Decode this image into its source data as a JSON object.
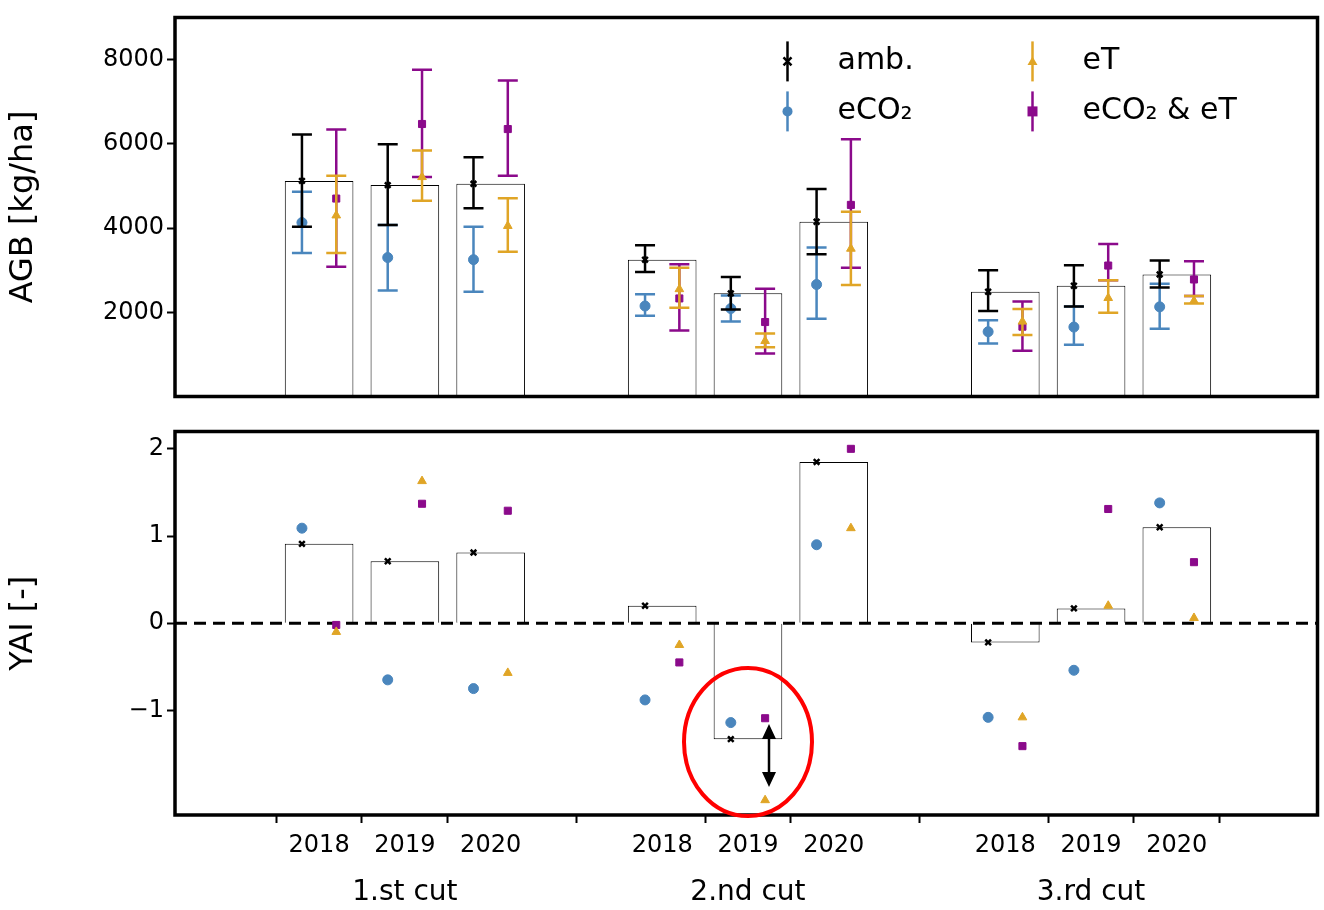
{
  "chart_data": [
    {
      "type": "bar",
      "ylabel": "AGB [kg/ha]",
      "categories": [
        "2018",
        "2019",
        "2020",
        null,
        "2018",
        "2019",
        "2020",
        null,
        "2018",
        "2019",
        "2020"
      ],
      "ylim": [
        0,
        9000
      ],
      "yticks": [
        2000,
        4000,
        6000,
        8000
      ],
      "tick_labels": "y",
      "legend": "top right",
      "series": [
        {
          "type": "bar",
          "color": "#ffffff",
          "values": [
            5120,
            5020,
            5050,
            null,
            3250,
            2450,
            4150,
            null,
            2490,
            2630,
            2900
          ]
        },
        {
          "type": "scatter",
          "name": "amb.",
          "color": "#000000",
          "marker": "cross",
          "values": [
            5120,
            5020,
            5050,
            null,
            3250,
            2450,
            4150,
            null,
            2490,
            2630,
            2900
          ],
          "errors": [
            [
              4030,
              6220
            ],
            [
              4070,
              5990
            ],
            [
              4470,
              5680
            ],
            null,
            [
              2960,
              3590
            ],
            [
              2070,
              2840
            ],
            [
              3380,
              4930
            ],
            null,
            [
              2030,
              3000
            ],
            [
              2140,
              3120
            ],
            [
              2590,
              3230
            ]
          ]
        },
        {
          "type": "scatter",
          "name": "eCO₂",
          "color": "#4a86bd",
          "marker": "circle",
          "values": [
            4130,
            3300,
            3250,
            null,
            2150,
            2090,
            2660,
            null,
            1540,
            1650,
            2130
          ],
          "errors": [
            [
              3410,
              4860
            ],
            [
              2520,
              4070
            ],
            [
              2490,
              4030
            ],
            null,
            [
              1920,
              2430
            ],
            [
              1780,
              2400
            ],
            [
              1850,
              3540
            ],
            null,
            [
              1260,
              1810
            ],
            [
              1230,
              2140
            ],
            [
              1610,
              2680
            ]
          ]
        },
        {
          "type": "scatter",
          "name": "eT",
          "color": "#e0a526",
          "marker": "triangle",
          "values": [
            4300,
            5210,
            4050,
            null,
            2550,
            1320,
            3510,
            null,
            1780,
            2340,
            2270
          ],
          "errors": [
            [
              3410,
              5240
            ],
            [
              4650,
              5840
            ],
            [
              3440,
              4710
            ],
            null,
            [
              2110,
              3060
            ],
            [
              1170,
              1500
            ],
            [
              2650,
              4390
            ],
            null,
            [
              1460,
              2080
            ],
            [
              1990,
              2760
            ],
            [
              2210,
              2390
            ]
          ]
        },
        {
          "type": "scatter",
          "name": "eCO₂ & eT",
          "color": "#8b0a8b",
          "marker": "square",
          "values": [
            4700,
            6470,
            6350,
            null,
            2330,
            1770,
            4550,
            null,
            1660,
            3110,
            2780
          ],
          "errors": [
            [
              3080,
              6340
            ],
            [
              5210,
              7760
            ],
            [
              5240,
              7500
            ],
            null,
            [
              1570,
              3140
            ],
            [
              1020,
              2560
            ],
            [
              3060,
              6110
            ],
            null,
            [
              1090,
              2260
            ],
            [
              2760,
              3620
            ],
            [
              2390,
              3210
            ]
          ]
        }
      ]
    },
    {
      "type": "bar",
      "ylabel": "YAI [-]",
      "categories": [
        "2018",
        "2019",
        "2020",
        null,
        "2018",
        "2019",
        "2020",
        null,
        "2018",
        "2019",
        "2020"
      ],
      "ylim": [
        -2.2,
        2.2
      ],
      "yticks": [
        -1,
        0,
        1,
        2
      ],
      "annotations": [
        "1.st cut",
        "2.nd cut",
        "3.rd cut"
      ],
      "ref_lines": [
        {
          "axis": "y",
          "value": 0,
          "color": "#000000",
          "line_style": "dashed"
        }
      ],
      "series": [
        {
          "type": "bar",
          "color": "#ffffff",
          "values": [
            0.91,
            0.71,
            0.81,
            null,
            0.2,
            -1.33,
            1.85,
            null,
            -0.22,
            0.17,
            1.1
          ]
        },
        {
          "type": "scatter",
          "color": "#000000",
          "marker": "cross",
          "values": [
            0.91,
            0.71,
            0.81,
            null,
            0.2,
            -1.33,
            1.85,
            null,
            -0.22,
            0.17,
            1.1
          ]
        },
        {
          "type": "scatter",
          "color": "#4a86bd",
          "marker": "circle",
          "values": [
            1.09,
            -0.65,
            -0.75,
            null,
            -0.88,
            -1.14,
            0.9,
            null,
            -1.08,
            -0.54,
            1.38
          ]
        },
        {
          "type": "scatter",
          "color": "#e0a526",
          "marker": "triangle",
          "values": [
            -0.1,
            1.63,
            -0.57,
            null,
            -0.25,
            -2.03,
            1.09,
            null,
            -1.08,
            0.2,
            0.06
          ]
        },
        {
          "type": "scatter",
          "color": "#8b0a8b",
          "marker": "square",
          "values": [
            -0.02,
            1.37,
            1.29,
            null,
            -0.45,
            -1.09,
            2.0,
            null,
            -1.41,
            1.31,
            0.7
          ]
        }
      ]
    }
  ]
}
